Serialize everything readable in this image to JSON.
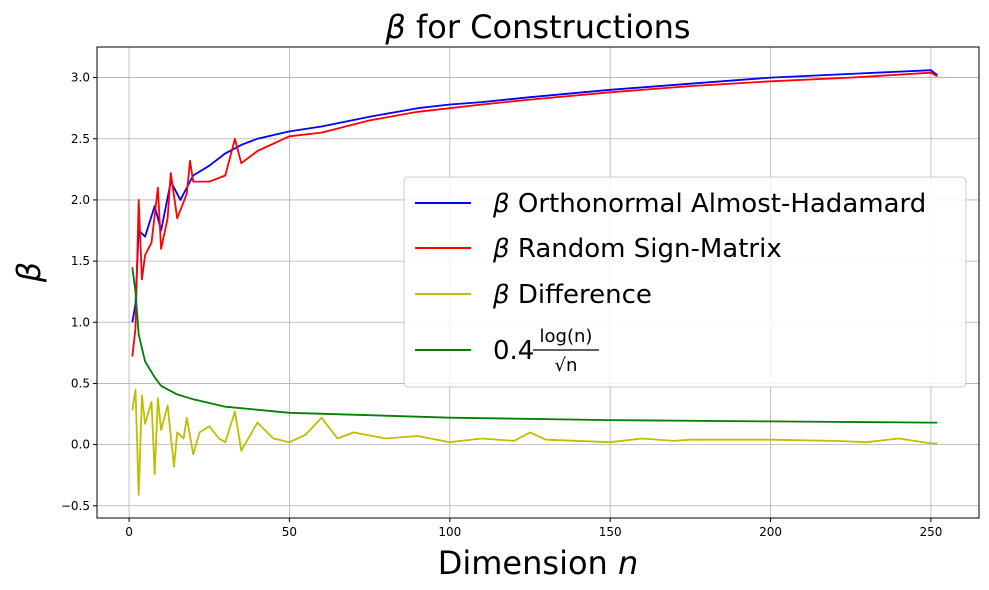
{
  "chart_data": {
    "type": "line",
    "title": {
      "symbol": "β",
      "text": " for Constructions"
    },
    "xlabel": {
      "text": "Dimension ",
      "symbol": "n"
    },
    "ylabel": "β",
    "xlim": [
      -10,
      265
    ],
    "ylim": [
      -0.6,
      3.25
    ],
    "xticks": [
      0,
      50,
      100,
      150,
      200,
      250
    ],
    "yticks": [
      -0.5,
      0.0,
      0.5,
      1.0,
      1.5,
      2.0,
      2.5,
      3.0
    ],
    "xtick_labels": [
      "0",
      "50",
      "100",
      "150",
      "200",
      "250"
    ],
    "ytick_labels": [
      "−0.5",
      "0.0",
      "0.5",
      "1.0",
      "1.5",
      "2.0",
      "2.5",
      "3.0"
    ],
    "grid": true,
    "legend_position": "center-right",
    "series": [
      {
        "name": "Orthonormal Almost-Hadamard",
        "legend_prefix": "β",
        "color": "#0000ff",
        "x": [
          1,
          2,
          3,
          5,
          8,
          10,
          13,
          16,
          20,
          25,
          30,
          35,
          40,
          50,
          60,
          75,
          90,
          100,
          110,
          125,
          150,
          175,
          200,
          225,
          250,
          252
        ],
        "y": [
          1.0,
          1.15,
          1.75,
          1.7,
          1.95,
          1.75,
          2.15,
          2.0,
          2.2,
          2.28,
          2.38,
          2.45,
          2.5,
          2.56,
          2.6,
          2.68,
          2.75,
          2.78,
          2.8,
          2.84,
          2.9,
          2.95,
          3.0,
          3.03,
          3.06,
          3.02
        ]
      },
      {
        "name": "Random Sign-Matrix",
        "legend_prefix": "β",
        "color": "#ff0000",
        "x": [
          1,
          2,
          3,
          4,
          5,
          7,
          9,
          10,
          12,
          13,
          15,
          18,
          19,
          20,
          25,
          30,
          33,
          35,
          40,
          50,
          60,
          75,
          90,
          100,
          110,
          125,
          150,
          175,
          200,
          225,
          250,
          252
        ],
        "y": [
          0.72,
          0.95,
          2.0,
          1.35,
          1.55,
          1.65,
          2.1,
          1.6,
          1.85,
          2.22,
          1.85,
          2.05,
          2.32,
          2.15,
          2.15,
          2.2,
          2.5,
          2.3,
          2.4,
          2.52,
          2.55,
          2.65,
          2.72,
          2.75,
          2.78,
          2.82,
          2.88,
          2.93,
          2.97,
          3.0,
          3.04,
          3.01
        ]
      },
      {
        "name": "Difference",
        "legend_prefix": "β",
        "color": "#bfbf00",
        "x": [
          1,
          2,
          3,
          4,
          5,
          7,
          8,
          9,
          10,
          12,
          14,
          15,
          17,
          18,
          20,
          22,
          25,
          28,
          30,
          33,
          35,
          40,
          45,
          50,
          55,
          60,
          65,
          70,
          80,
          90,
          100,
          110,
          120,
          125,
          130,
          150,
          160,
          170,
          175,
          200,
          220,
          230,
          240,
          250,
          252
        ],
        "y": [
          0.28,
          0.45,
          -0.41,
          0.4,
          0.17,
          0.35,
          -0.24,
          0.38,
          0.12,
          0.32,
          -0.18,
          0.1,
          0.05,
          0.22,
          -0.08,
          0.1,
          0.15,
          0.05,
          0.02,
          0.27,
          -0.05,
          0.18,
          0.05,
          0.02,
          0.08,
          0.22,
          0.05,
          0.1,
          0.05,
          0.07,
          0.02,
          0.05,
          0.03,
          0.1,
          0.04,
          0.02,
          0.05,
          0.03,
          0.04,
          0.04,
          0.03,
          0.02,
          0.05,
          0.01,
          0.01
        ]
      },
      {
        "name": "log(n)/√n",
        "legend_prefix": "0.4",
        "formula_num": "log(n)",
        "formula_den": "√n",
        "color": "#008000",
        "x": [
          1,
          2,
          3,
          5,
          8,
          10,
          15,
          20,
          30,
          50,
          75,
          100,
          150,
          200,
          250,
          252
        ],
        "y": [
          1.45,
          1.25,
          0.9,
          0.68,
          0.55,
          0.48,
          0.41,
          0.37,
          0.31,
          0.26,
          0.24,
          0.22,
          0.2,
          0.19,
          0.18,
          0.18
        ]
      }
    ]
  }
}
